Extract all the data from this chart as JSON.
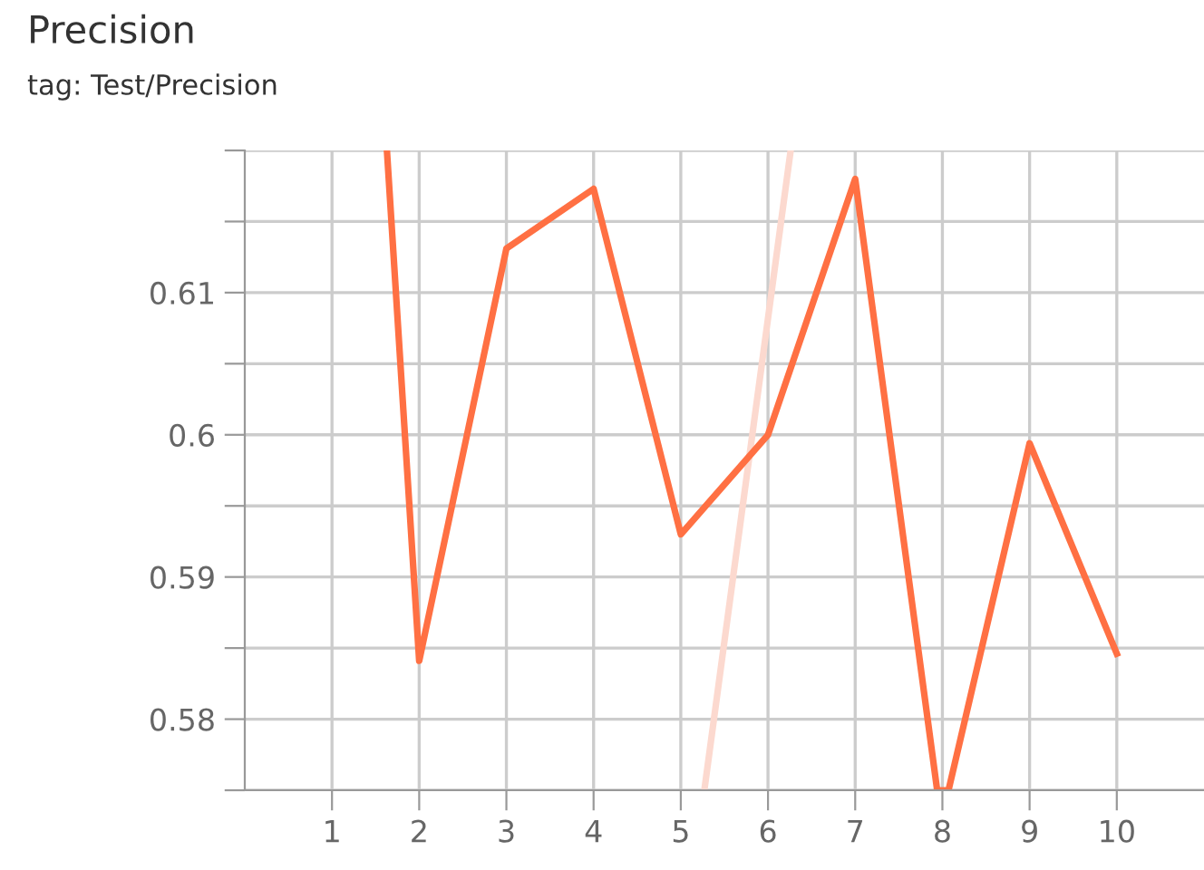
{
  "chart_data": {
    "type": "line",
    "title": "Precision",
    "subtitle": "tag: Test/Precision",
    "series": [
      {
        "color": "#fcd9cf",
        "x": [
          5.27,
          6.26
        ],
        "values": [
          0.575,
          0.62
        ]
      },
      {
        "color": "#ff7043",
        "x": [
          1.63,
          2,
          3,
          4,
          5,
          6,
          7,
          7.94,
          8.07,
          9,
          10
        ],
        "values": [
          0.62,
          0.5841,
          0.6131,
          0.6173,
          0.593,
          0.6,
          0.618,
          0.575,
          0.575,
          0.5994,
          0.5846
        ]
      }
    ],
    "xlim": [
      0,
      11
    ],
    "xticks": [
      1,
      2,
      3,
      4,
      5,
      6,
      7,
      8,
      9,
      10
    ],
    "ylim": [
      0.575,
      0.62
    ],
    "yticks": [
      {
        "value": 0.575,
        "label": null
      },
      0.58,
      {
        "value": 0.585,
        "label": null
      },
      0.59,
      {
        "value": 0.595,
        "label": null
      },
      0.6,
      {
        "value": 0.605,
        "label": null
      },
      0.61,
      {
        "value": 0.615,
        "label": null
      },
      {
        "value": 0.62,
        "label": null
      }
    ],
    "grid": true,
    "line_style": "solid"
  }
}
